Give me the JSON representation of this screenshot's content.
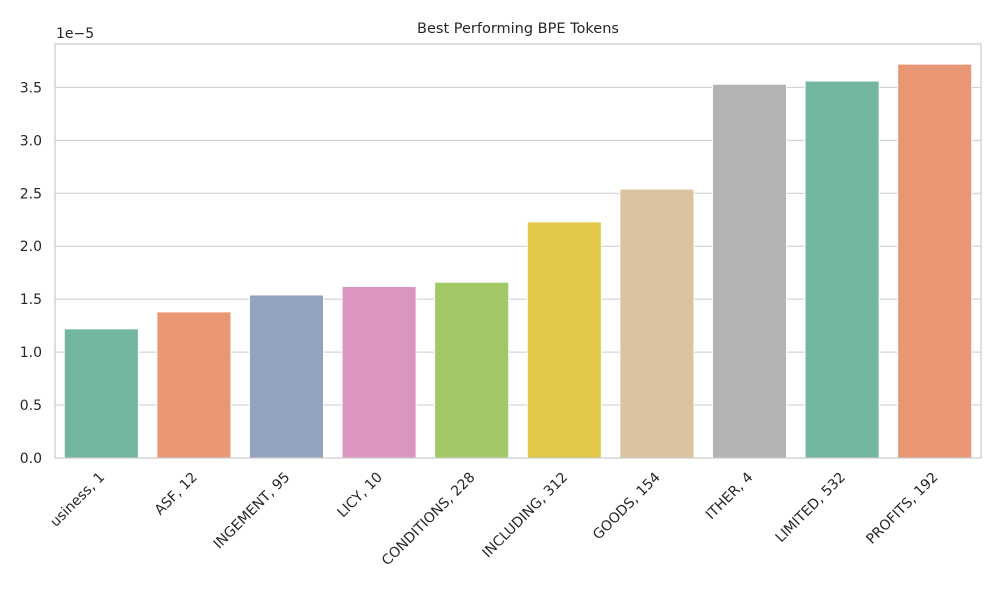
{
  "chart_data": {
    "type": "bar",
    "title": "Best Performing BPE Tokens",
    "xlabel": "",
    "ylabel": "",
    "y_offset_label": "1e−5",
    "y_scale": 1e-05,
    "categories": [
      "usiness, 1",
      "ASF, 12",
      "INGEMENT, 95",
      "LICY, 10",
      "CONDITIONS, 228",
      "INCLUDING, 312",
      "GOODS, 154",
      "ITHER, 4",
      "LIMITED, 532",
      "PROFITS, 192"
    ],
    "values": [
      1.22e-05,
      1.38e-05,
      1.54e-05,
      1.62e-05,
      1.66e-05,
      2.23e-05,
      2.54e-05,
      3.53e-05,
      3.56e-05,
      3.72e-05
    ],
    "colors": [
      "#72b6a1",
      "#e99675",
      "#95a3c3",
      "#db96c0",
      "#a2c865",
      "#e2c94a",
      "#dac39e",
      "#b3b3b3",
      "#72b6a1",
      "#e99675"
    ],
    "ylim": [
      0,
      3.91e-05
    ],
    "yticks": [
      0,
      5e-06,
      1e-05,
      1.5e-05,
      2e-05,
      2.5e-05,
      3e-05,
      3.5e-05
    ],
    "ytick_labels": [
      "0.0",
      "0.5",
      "1.0",
      "1.5",
      "2.0",
      "2.5",
      "3.0",
      "3.5"
    ],
    "grid": true,
    "legend": "none"
  }
}
